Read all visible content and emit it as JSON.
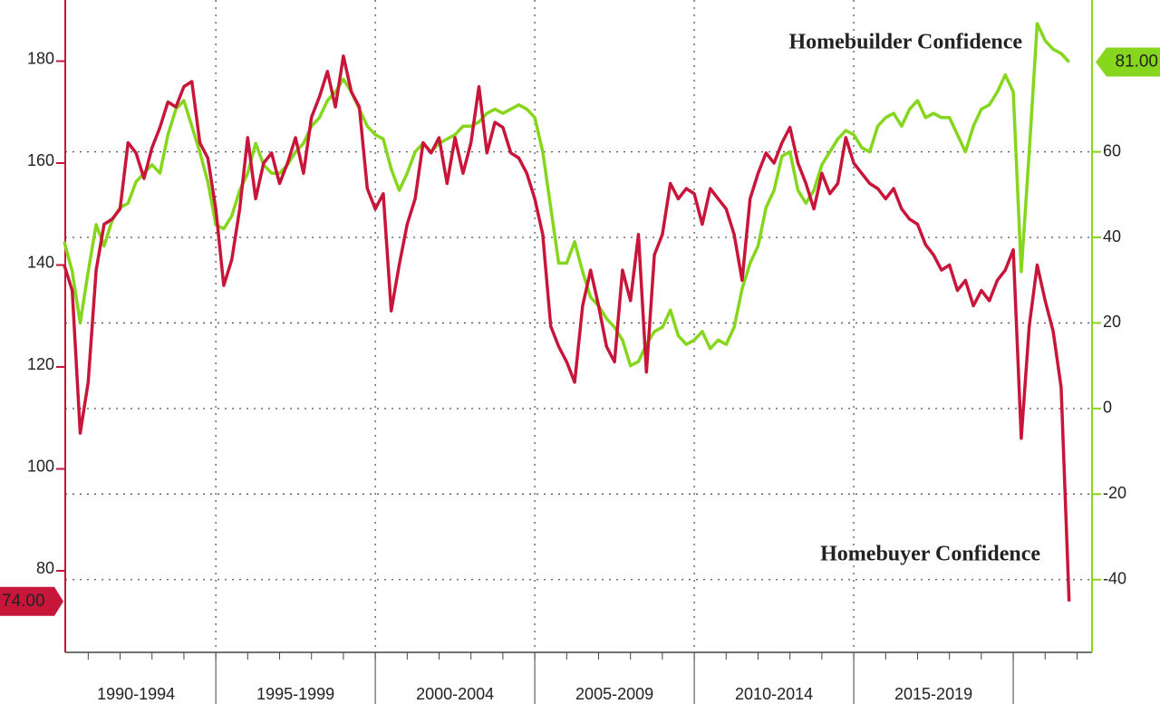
{
  "chart_data": {
    "type": "line",
    "x": [
      1990.25,
      1990.5,
      1990.75,
      1991,
      1991.25,
      1991.5,
      1991.75,
      1992,
      1992.25,
      1992.5,
      1992.75,
      1993,
      1993.25,
      1993.5,
      1993.75,
      1994,
      1994.25,
      1994.5,
      1994.75,
      1995,
      1995.25,
      1995.5,
      1995.75,
      1996,
      1996.25,
      1996.5,
      1996.75,
      1997,
      1997.25,
      1997.5,
      1997.75,
      1998,
      1998.25,
      1998.5,
      1998.75,
      1999,
      1999.25,
      1999.5,
      1999.75,
      2000,
      2000.25,
      2000.5,
      2000.75,
      2001,
      2001.25,
      2001.5,
      2001.75,
      2002,
      2002.25,
      2002.5,
      2002.75,
      2003,
      2003.25,
      2003.5,
      2003.75,
      2004,
      2004.25,
      2004.5,
      2004.75,
      2005,
      2005.25,
      2005.5,
      2005.75,
      2006,
      2006.25,
      2006.5,
      2006.75,
      2007,
      2007.25,
      2007.5,
      2007.75,
      2008,
      2008.25,
      2008.5,
      2008.75,
      2009,
      2009.25,
      2009.5,
      2009.75,
      2010,
      2010.25,
      2010.5,
      2010.75,
      2011,
      2011.25,
      2011.5,
      2011.75,
      2012,
      2012.25,
      2012.5,
      2012.75,
      2013,
      2013.25,
      2013.5,
      2013.75,
      2014,
      2014.25,
      2014.5,
      2014.75,
      2015,
      2015.25,
      2015.5,
      2015.75,
      2016,
      2016.25,
      2016.5,
      2016.75,
      2017,
      2017.25,
      2017.5,
      2017.75,
      2018,
      2018.25,
      2018.5,
      2018.75,
      2019,
      2019.25,
      2019.5,
      2019.75,
      2020,
      2020.25,
      2020.5,
      2020.75,
      2021,
      2021.25,
      2021.5,
      2021.75
    ],
    "series": [
      {
        "name": "Homebuyer Confidence",
        "color": "#c8163a",
        "label_color": "#e04848",
        "end_label": "74.00",
        "values": [
          140,
          135,
          107,
          117,
          139,
          148,
          149,
          151,
          164,
          162,
          157,
          163,
          167,
          172,
          171,
          175,
          176,
          164,
          161,
          151,
          136,
          141,
          151,
          165,
          153,
          160,
          162,
          156,
          160,
          165,
          158,
          169,
          173,
          178,
          171,
          181,
          174,
          171,
          155,
          151,
          154,
          131,
          140,
          148,
          153,
          164,
          162,
          165,
          156,
          165,
          158,
          164,
          175,
          162,
          168,
          167,
          162,
          161,
          158,
          153,
          146,
          128,
          124,
          121,
          117,
          132,
          139,
          132,
          124,
          121,
          139,
          133,
          146,
          119,
          142,
          146,
          156,
          153,
          155,
          154,
          148,
          155,
          153,
          151,
          146,
          137,
          153,
          158,
          162,
          160,
          164,
          167,
          160,
          156,
          151,
          158,
          154,
          156,
          165,
          160,
          158,
          156,
          155,
          153,
          155,
          151,
          149,
          148,
          144,
          142,
          139,
          140,
          135,
          137,
          132,
          135,
          133,
          137,
          139,
          143,
          106,
          128,
          140,
          133,
          127,
          116,
          74
        ]
      },
      {
        "name": "Homebuilder Confidence",
        "color": "#86d61e",
        "label_color": "#5cd23c",
        "end_label": "81.00",
        "axis": "y2",
        "values": [
          39,
          32,
          20,
          32,
          43,
          38,
          44,
          47,
          48,
          53,
          55,
          57,
          55,
          64,
          70,
          72,
          66,
          60,
          53,
          43,
          42,
          45,
          51,
          55,
          62,
          57,
          55,
          55,
          57,
          60,
          62,
          66,
          68,
          72,
          74,
          77,
          74,
          70,
          66,
          64,
          63,
          56,
          51,
          55,
          60,
          62,
          60,
          62,
          63,
          64,
          66,
          66,
          67,
          69,
          70,
          69,
          70,
          71,
          70,
          68,
          60,
          47,
          34,
          34,
          39,
          32,
          26,
          24,
          21,
          19,
          16,
          10,
          11,
          15,
          18,
          19,
          23,
          17,
          15,
          16,
          18,
          14,
          16,
          15,
          19,
          28,
          34,
          38,
          47,
          51,
          59,
          60,
          51,
          48,
          51,
          57,
          60,
          63,
          65,
          64,
          61,
          60,
          66,
          68,
          69,
          66,
          70,
          72,
          68,
          69,
          68,
          68,
          64,
          60,
          66,
          70,
          71,
          74,
          78,
          74,
          32,
          60,
          90,
          86,
          84,
          83,
          81
        ]
      }
    ],
    "xlim": [
      1990.28,
      2022.47
    ],
    "xticks": [
      1991,
      1992,
      1993,
      1994,
      1995,
      1996,
      1997,
      1998,
      1999,
      2000,
      2001,
      2002,
      2003,
      2004,
      2005,
      2006,
      2007,
      2008,
      2009,
      2010,
      2011,
      2012,
      2013,
      2014,
      2015,
      2016,
      2017,
      2018,
      2019,
      2020,
      2021,
      2022
    ],
    "periods": [
      {
        "label": "1990-1994",
        "start": 1990,
        "end": 1995
      },
      {
        "label": "1995-1999",
        "start": 1995,
        "end": 2000
      },
      {
        "label": "2000-2004",
        "start": 2000,
        "end": 2005
      },
      {
        "label": "2005-2009",
        "start": 2005,
        "end": 2010
      },
      {
        "label": "2010-2014",
        "start": 2010,
        "end": 2015
      },
      {
        "label": "2015-2019",
        "start": 2015,
        "end": 2020
      }
    ],
    "ylim": [
      64,
      192
    ],
    "yticks": [
      80,
      100,
      120,
      140,
      160,
      180
    ],
    "y2lim": [
      -57,
      95.5
    ],
    "y2ticks": [
      -40,
      -20,
      0,
      20,
      40,
      60
    ],
    "grid": true
  }
}
